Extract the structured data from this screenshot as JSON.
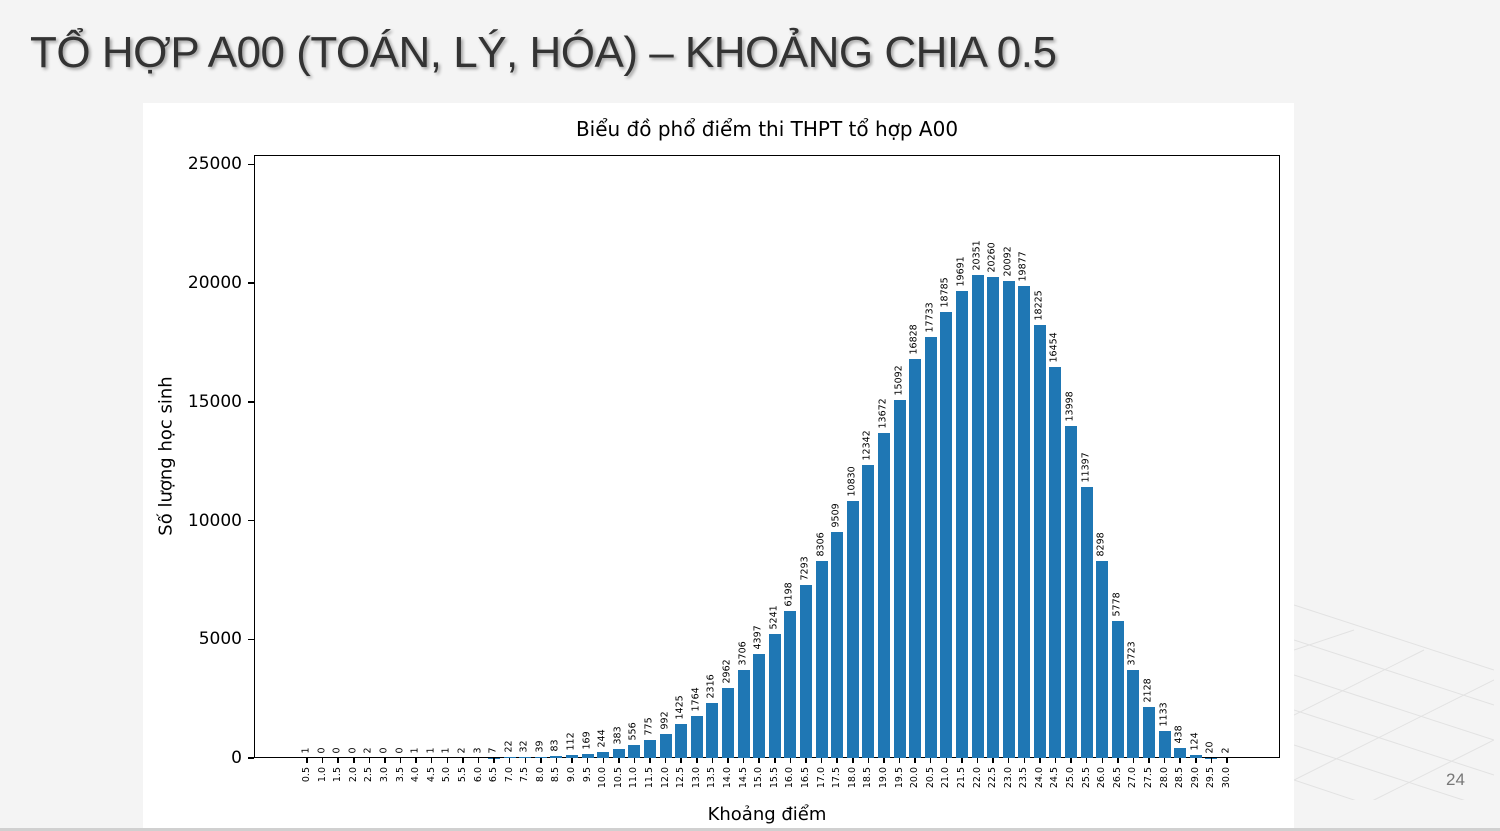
{
  "slide": {
    "title": "TỔ HỢP A00 (TOÁN, LÝ, HÓA) – KHOẢNG CHIA 0.5",
    "page_number": "24"
  },
  "colors": {
    "bar": "#1f77b4",
    "background": "#f4f4f4",
    "panel": "#ffffff"
  },
  "chart_data": {
    "type": "bar",
    "title": "Biểu đồ phổ điểm thi THPT tổ hợp A00",
    "xlabel": "Khoảng điểm",
    "ylabel": "Số lượng học sinh",
    "ylim": [
      0,
      25400
    ],
    "yticks": [
      0,
      5000,
      10000,
      15000,
      20000,
      25000
    ],
    "grid": false,
    "legend": null,
    "categories": [
      "0.5",
      "1.0",
      "1.5",
      "2.0",
      "2.5",
      "3.0",
      "3.5",
      "4.0",
      "4.5",
      "5.0",
      "5.5",
      "6.0",
      "6.5",
      "7.0",
      "7.5",
      "8.0",
      "8.5",
      "9.0",
      "9.5",
      "10.0",
      "10.5",
      "11.0",
      "11.5",
      "12.0",
      "12.5",
      "13.0",
      "13.5",
      "14.0",
      "14.5",
      "15.0",
      "15.5",
      "16.0",
      "16.5",
      "17.0",
      "17.5",
      "18.0",
      "18.5",
      "19.0",
      "19.5",
      "20.0",
      "20.5",
      "21.0",
      "21.5",
      "22.0",
      "22.5",
      "23.0",
      "23.5",
      "24.0",
      "24.5",
      "25.0",
      "25.5",
      "26.0",
      "26.5",
      "27.0",
      "27.5",
      "28.0",
      "28.5",
      "29.0",
      "29.5",
      "30.0"
    ],
    "values": [
      1,
      0,
      0,
      0,
      2,
      0,
      0,
      1,
      1,
      1,
      2,
      3,
      7,
      22,
      32,
      39,
      83,
      112,
      169,
      244,
      383,
      556,
      775,
      992,
      1425,
      1764,
      2316,
      2962,
      3706,
      4397,
      5241,
      6198,
      7293,
      8306,
      9509,
      10830,
      12342,
      13672,
      15092,
      16828,
      17733,
      18785,
      19691,
      20351,
      20260,
      20092,
      19877,
      18225,
      16454,
      13998,
      11397,
      8298,
      5778,
      3723,
      2128,
      1133,
      438,
      124,
      20,
      2
    ]
  }
}
